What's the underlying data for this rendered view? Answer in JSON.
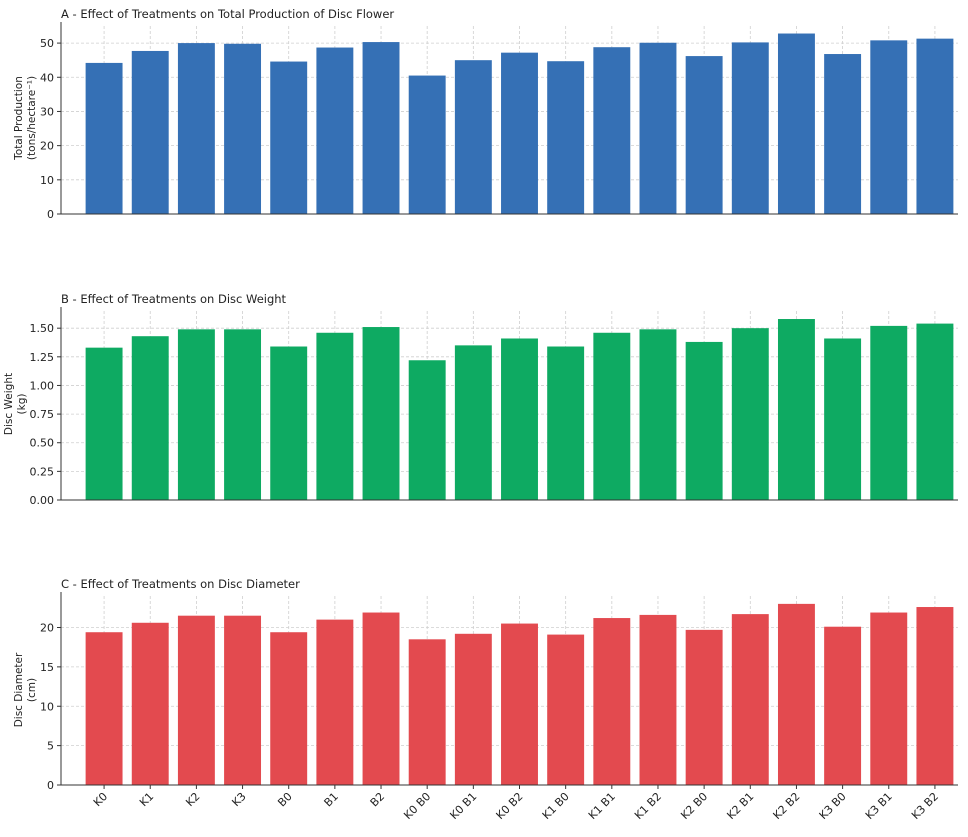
{
  "chart_data": [
    {
      "type": "bar",
      "title": "A - Effect of Treatments on Total Production of Disc Flower",
      "ylabel": [
        "Total Production",
        "(tons/hectare⁻¹)"
      ],
      "xlabel": "",
      "ylim": [
        0,
        55
      ],
      "yticks": [
        0,
        10,
        20,
        30,
        40,
        50
      ],
      "ytick_labels": [
        "0",
        "10",
        "20",
        "30",
        "40",
        "50"
      ],
      "color": "#3570b5",
      "grid": true,
      "show_xticks": false,
      "categories": [
        "K0",
        "K1",
        "K2",
        "K3",
        "B0",
        "B1",
        "B2",
        "K0 B0",
        "K0 B1",
        "K0 B2",
        "K1 B0",
        "K1 B1",
        "K1 B2",
        "K2 B0",
        "K2 B1",
        "K2 B2",
        "K3 B0",
        "K3 B1",
        "K3 B2"
      ],
      "values": [
        44.2,
        47.7,
        50.0,
        49.8,
        44.6,
        48.7,
        50.3,
        40.5,
        45.0,
        47.2,
        44.7,
        48.8,
        50.1,
        46.2,
        50.2,
        52.8,
        46.8,
        50.8,
        51.3
      ]
    },
    {
      "type": "bar",
      "title": "B - Effect of Treatments on Disc Weight",
      "ylabel": [
        "Disc Weight",
        "(kg)"
      ],
      "xlabel": "",
      "ylim": [
        0,
        1.65
      ],
      "yticks": [
        0,
        0.25,
        0.5,
        0.75,
        1.0,
        1.25,
        1.5
      ],
      "ytick_labels": [
        "0.00",
        "0.25",
        "0.50",
        "0.75",
        "1.00",
        "1.25",
        "1.50"
      ],
      "color": "#0eaa62",
      "grid": true,
      "show_xticks": false,
      "categories": [
        "K0",
        "K1",
        "K2",
        "K3",
        "B0",
        "B1",
        "B2",
        "K0 B0",
        "K0 B1",
        "K0 B2",
        "K1 B0",
        "K1 B1",
        "K1 B2",
        "K2 B0",
        "K2 B1",
        "K2 B2",
        "K3 B0",
        "K3 B1",
        "K3 B2"
      ],
      "values": [
        1.33,
        1.43,
        1.49,
        1.49,
        1.34,
        1.46,
        1.51,
        1.22,
        1.35,
        1.41,
        1.34,
        1.46,
        1.49,
        1.38,
        1.5,
        1.58,
        1.41,
        1.52,
        1.54
      ]
    },
    {
      "type": "bar",
      "title": "C - Effect of Treatments on Disc Diameter",
      "ylabel": [
        "Disc Diameter",
        "(cm)"
      ],
      "xlabel": "",
      "ylim": [
        0,
        24
      ],
      "yticks": [
        0,
        5,
        10,
        15,
        20
      ],
      "ytick_labels": [
        "0",
        "5",
        "10",
        "15",
        "20"
      ],
      "color": "#e34a4f",
      "grid": true,
      "show_xticks": true,
      "categories": [
        "K0",
        "K1",
        "K2",
        "K3",
        "B0",
        "B1",
        "B2",
        "K0 B0",
        "K0 B1",
        "K0 B2",
        "K1 B0",
        "K1 B1",
        "K1 B2",
        "K2 B0",
        "K2 B1",
        "K2 B2",
        "K3 B0",
        "K3 B1",
        "K3 B2"
      ],
      "values": [
        19.4,
        20.6,
        21.5,
        21.5,
        19.4,
        21.0,
        21.9,
        18.5,
        19.2,
        20.5,
        19.1,
        21.2,
        21.6,
        19.7,
        21.7,
        23.0,
        20.1,
        21.9,
        22.6
      ]
    }
  ]
}
